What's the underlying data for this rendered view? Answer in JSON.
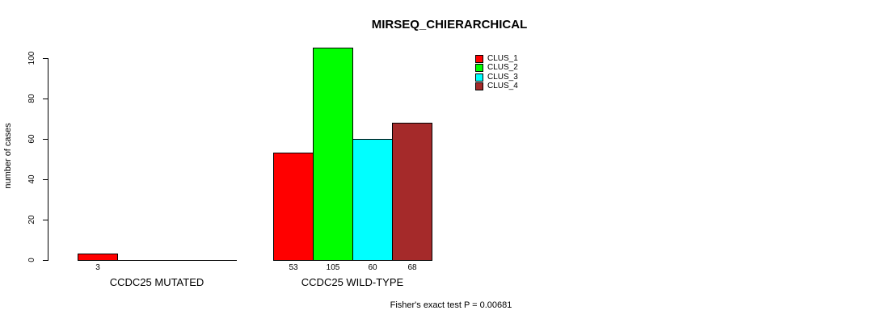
{
  "chart_data": {
    "type": "bar",
    "title": "MIRSEQ_CHIERARCHICAL",
    "ylabel": "number of cases",
    "xlabel": "",
    "ylim": [
      0,
      100
    ],
    "yticks": [
      "0",
      "20",
      "40",
      "60",
      "80",
      "100"
    ],
    "grid": false,
    "categories": [
      "CCDC25 MUTATED",
      "CCDC25 WILD-TYPE"
    ],
    "series": [
      {
        "name": "CLUS_1",
        "color": "#FF0000",
        "values": [
          3,
          53
        ]
      },
      {
        "name": "CLUS_2",
        "color": "#00FF00",
        "values": [
          0,
          105
        ]
      },
      {
        "name": "CLUS_3",
        "color": "#00FFFF",
        "values": [
          0,
          60
        ]
      },
      {
        "name": "CLUS_4",
        "color": "#A52A2A",
        "values": [
          0,
          68
        ]
      }
    ],
    "bar_value_labels": [
      [
        "3",
        "",
        "",
        ""
      ],
      [
        "53",
        "105",
        "60",
        "68"
      ]
    ],
    "legend": {
      "position": "top-right",
      "entries": [
        "CLUS_1",
        "CLUS_2",
        "CLUS_3",
        "CLUS_4"
      ]
    },
    "footnote": "Fisher's exact test P = 0.00681",
    "axis_color": "#000000",
    "bar_border_color": "#000000"
  }
}
